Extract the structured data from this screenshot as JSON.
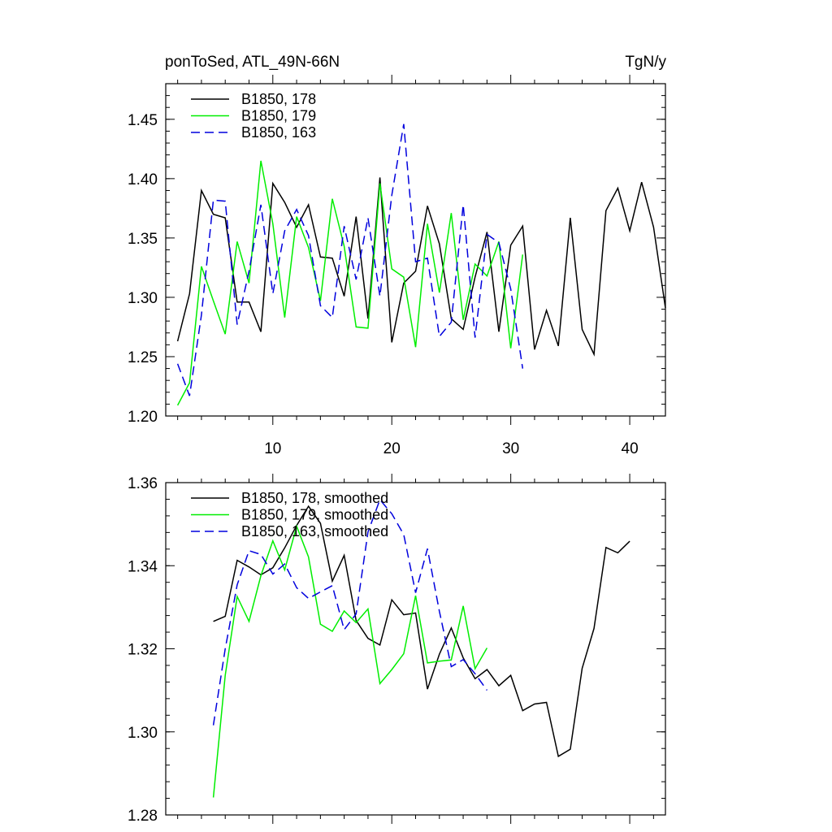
{
  "chart_data": [
    {
      "type": "line",
      "title_left": "ponToSed, ATL_49N-66N",
      "title_right": "TgN/y",
      "xlim": [
        1,
        43
      ],
      "ylim": [
        1.2,
        1.48
      ],
      "xticks": [
        10,
        20,
        30,
        40
      ],
      "xtick_labels": [
        "10",
        "20",
        "30",
        "40"
      ],
      "yticks": [
        1.2,
        1.25,
        1.3,
        1.35,
        1.4,
        1.45
      ],
      "ytick_labels": [
        "1.20",
        "1.25",
        "1.30",
        "1.35",
        "1.40",
        "1.45"
      ],
      "grid": false,
      "legend_position": "top-left",
      "series": [
        {
          "name": "B1850, 178",
          "color": "#000000",
          "dash": "solid",
          "x_start": 2,
          "values": [
            1.263,
            1.303,
            1.39,
            1.37,
            1.367,
            1.296,
            1.296,
            1.271,
            1.396,
            1.38,
            1.359,
            1.378,
            1.334,
            1.333,
            1.301,
            1.368,
            1.282,
            1.401,
            1.262,
            1.312,
            1.322,
            1.377,
            1.345,
            1.282,
            1.273,
            1.317,
            1.355,
            1.271,
            1.344,
            1.36,
            1.256,
            1.289,
            1.259,
            1.367,
            1.273,
            1.252,
            1.373,
            1.392,
            1.356,
            1.397,
            1.359,
            1.291
          ]
        },
        {
          "name": "B1850, 179",
          "color": "#00ee00",
          "dash": "solid",
          "x_start": 2,
          "values": [
            1.209,
            1.228,
            1.326,
            1.297,
            1.269,
            1.347,
            1.312,
            1.415,
            1.362,
            1.283,
            1.368,
            1.342,
            1.297,
            1.383,
            1.343,
            1.275,
            1.274,
            1.396,
            1.324,
            1.317,
            1.258,
            1.362,
            1.304,
            1.371,
            1.281,
            1.328,
            1.318,
            1.347,
            1.257,
            1.336
          ]
        },
        {
          "name": "B1850, 163",
          "color": "#0000dd",
          "dash": "dashed",
          "x_start": 2,
          "values": [
            1.244,
            1.217,
            1.285,
            1.382,
            1.381,
            1.277,
            1.322,
            1.378,
            1.303,
            1.356,
            1.374,
            1.352,
            1.293,
            1.283,
            1.36,
            1.315,
            1.367,
            1.301,
            1.386,
            1.446,
            1.33,
            1.333,
            1.267,
            1.279,
            1.378,
            1.266,
            1.353,
            1.346,
            1.307,
            1.24
          ]
        }
      ]
    },
    {
      "type": "line",
      "xlim": [
        1,
        43
      ],
      "ylim": [
        1.28,
        1.36
      ],
      "xticks": [
        10,
        20,
        30,
        40
      ],
      "yticks": [
        1.28,
        1.3,
        1.32,
        1.34,
        1.36
      ],
      "ytick_labels": [
        "1.28",
        "1.30",
        "1.32",
        "1.34",
        "1.36"
      ],
      "grid": false,
      "legend_position": "top-left",
      "series": [
        {
          "name": "B1850, 178, smoothed",
          "color": "#000000",
          "dash": "solid",
          "x_start": 5,
          "values": [
            1.3266,
            1.3278,
            1.3413,
            1.3397,
            1.3378,
            1.3395,
            1.3443,
            1.3497,
            1.3543,
            1.3502,
            1.3363,
            1.3425,
            1.3268,
            1.3225,
            1.3209,
            1.3318,
            1.3282,
            1.3286,
            1.3103,
            1.3187,
            1.325,
            1.3178,
            1.3128,
            1.315,
            1.3111,
            1.3136,
            1.3051,
            1.3067,
            1.3071,
            1.2941,
            1.2958,
            1.3153,
            1.3249,
            1.3444,
            1.3431,
            1.3459
          ]
        },
        {
          "name": "B1850, 179, smoothed",
          "color": "#00ee00",
          "dash": "solid",
          "x_start": 5,
          "values": [
            1.2842,
            1.3136,
            1.3326,
            1.3266,
            1.3376,
            1.346,
            1.339,
            1.3495,
            1.3421,
            1.3259,
            1.3242,
            1.3291,
            1.3263,
            1.3296,
            1.3116,
            1.315,
            1.3188,
            1.3328,
            1.3166,
            1.317,
            1.3173,
            1.3303,
            1.3152,
            1.3202
          ]
        },
        {
          "name": "B1850, 163, smoothed",
          "color": "#0000dd",
          "dash": "dashed",
          "x_start": 5,
          "values": [
            1.3016,
            1.32,
            1.3354,
            1.3436,
            1.3427,
            1.338,
            1.3404,
            1.3347,
            1.3321,
            1.3337,
            1.3352,
            1.3246,
            1.3284,
            1.3481,
            1.3559,
            1.3525,
            1.3475,
            1.3335,
            1.3441,
            1.329,
            1.3157,
            1.3174,
            1.314,
            1.31
          ]
        }
      ]
    }
  ]
}
